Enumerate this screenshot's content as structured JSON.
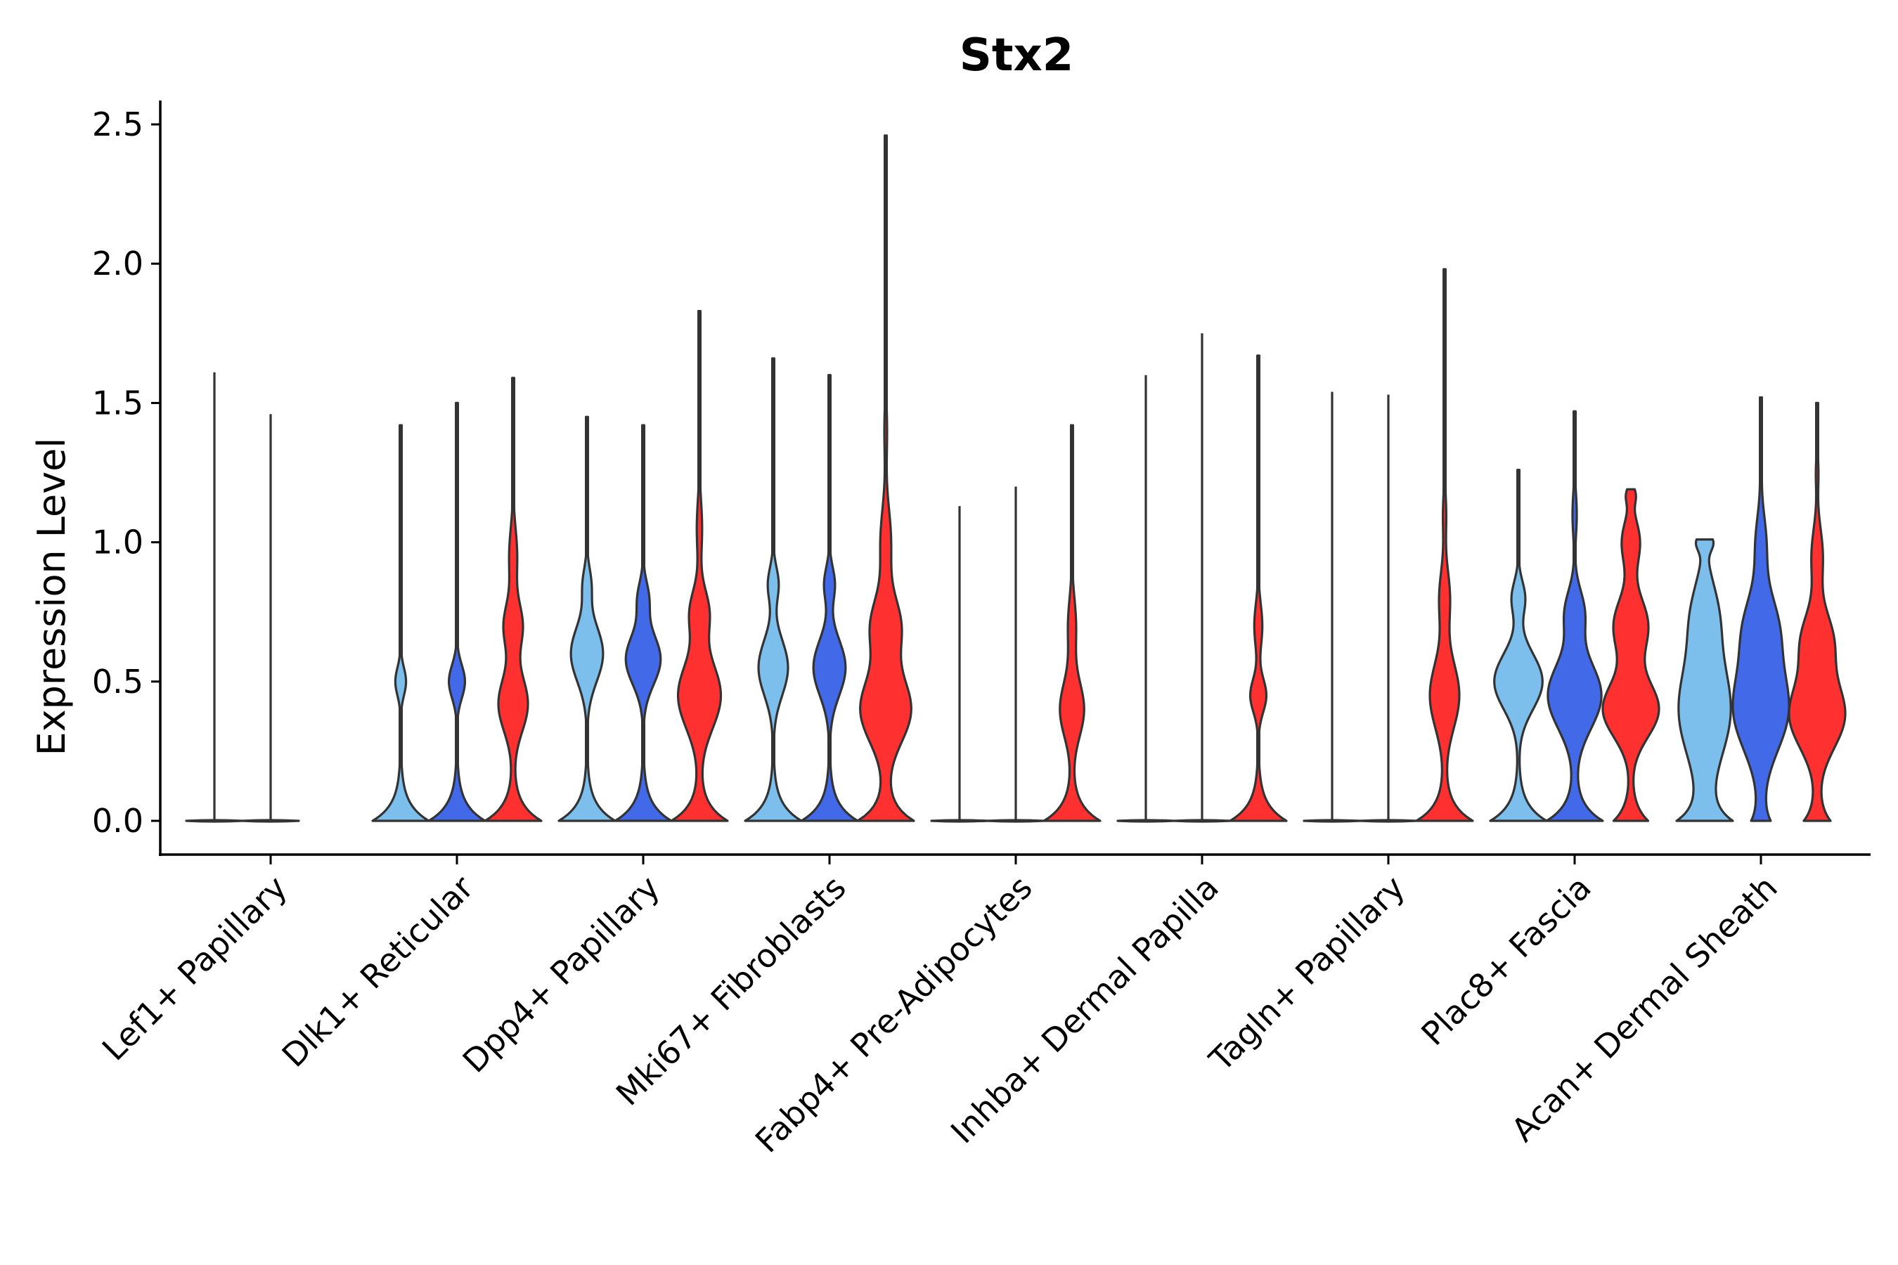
{
  "chart_data": {
    "type": "violin",
    "title": "Stx2",
    "xlabel": "",
    "ylabel": "Expression Level",
    "ylim": [
      -0.12,
      2.6
    ],
    "yticks": [
      0.0,
      0.5,
      1.0,
      1.5,
      2.0,
      2.5
    ],
    "ytick_labels": [
      "0.0",
      "0.5",
      "1.0",
      "1.5",
      "2.0",
      "2.5"
    ],
    "grid": false,
    "legend": "none",
    "series_colors": [
      "#7dbfec",
      "#4169e8",
      "#ff3030"
    ],
    "categories": [
      "Lef1+ Papillary",
      "Dlk1+ Reticular",
      "Dpp4+ Papillary",
      "Mki67+ Fibroblasts",
      "Fabp4+ Pre-Adipocytes",
      "Inhba+ Dermal Papilla",
      "Tagln+ Papillary",
      "Plac8+ Fascia",
      "Acan+ Dermal Sheath"
    ],
    "groups": [
      {
        "category": "Lef1+ Papillary",
        "violins": [
          {
            "series": 0,
            "max": 1.61,
            "width": 0.04,
            "modes": []
          },
          {
            "series": 1,
            "max": 1.46,
            "width": 0.04,
            "modes": []
          }
        ]
      },
      {
        "category": "Dlk1+ Reticular",
        "violins": [
          {
            "series": 0,
            "max": 1.42,
            "width": 1.0,
            "modes": [
              [
                0.5,
                0.05,
                0.2
              ]
            ]
          },
          {
            "series": 1,
            "max": 1.5,
            "width": 1.0,
            "modes": [
              [
                0.5,
                0.06,
                0.3
              ]
            ]
          },
          {
            "series": 2,
            "max": 1.59,
            "width": 1.0,
            "modes": [
              [
                0.42,
                0.1,
                0.55
              ],
              [
                0.7,
                0.08,
                0.35
              ],
              [
                0.95,
                0.1,
                0.15
              ]
            ]
          }
        ]
      },
      {
        "category": "Dpp4+ Papillary",
        "violins": [
          {
            "series": 0,
            "max": 1.45,
            "width": 1.0,
            "modes": [
              [
                0.6,
                0.1,
                0.6
              ],
              [
                0.85,
                0.06,
                0.15
              ]
            ]
          },
          {
            "series": 1,
            "max": 1.42,
            "width": 1.0,
            "modes": [
              [
                0.58,
                0.09,
                0.65
              ],
              [
                0.8,
                0.06,
                0.2
              ]
            ]
          },
          {
            "series": 2,
            "max": 1.83,
            "width": 1.0,
            "modes": [
              [
                0.45,
                0.12,
                0.8
              ],
              [
                0.75,
                0.08,
                0.35
              ],
              [
                1.05,
                0.1,
                0.1
              ]
            ]
          }
        ]
      },
      {
        "category": "Mki67+ Fibroblasts",
        "violins": [
          {
            "series": 0,
            "max": 1.66,
            "width": 1.0,
            "modes": [
              [
                0.55,
                0.1,
                0.55
              ],
              [
                0.85,
                0.06,
                0.2
              ]
            ]
          },
          {
            "series": 1,
            "max": 1.6,
            "width": 1.0,
            "modes": [
              [
                0.55,
                0.1,
                0.6
              ],
              [
                0.85,
                0.06,
                0.2
              ]
            ]
          },
          {
            "series": 2,
            "max": 2.46,
            "width": 1.0,
            "modes": [
              [
                0.4,
                0.12,
                0.95
              ],
              [
                0.7,
                0.1,
                0.55
              ],
              [
                1.0,
                0.12,
                0.2
              ],
              [
                1.4,
                0.1,
                0.05
              ]
            ]
          }
        ]
      },
      {
        "category": "Fabp4+ Pre-Adipocytes",
        "violins": [
          {
            "series": 0,
            "max": 1.13,
            "width": 0.04,
            "modes": []
          },
          {
            "series": 1,
            "max": 1.2,
            "width": 0.04,
            "modes": []
          },
          {
            "series": 2,
            "max": 1.42,
            "width": 1.0,
            "modes": [
              [
                0.4,
                0.1,
                0.45
              ],
              [
                0.7,
                0.1,
                0.15
              ]
            ]
          }
        ]
      },
      {
        "category": "Inhba+ Dermal Papilla",
        "violins": [
          {
            "series": 0,
            "max": 1.6,
            "width": 0.04,
            "modes": []
          },
          {
            "series": 1,
            "max": 1.75,
            "width": 0.04,
            "modes": []
          },
          {
            "series": 2,
            "max": 1.67,
            "width": 1.0,
            "modes": [
              [
                0.45,
                0.06,
                0.3
              ],
              [
                0.7,
                0.08,
                0.15
              ]
            ]
          }
        ]
      },
      {
        "category": "Tagln+ Papillary",
        "violins": [
          {
            "series": 0,
            "max": 1.54,
            "width": 0.04,
            "modes": []
          },
          {
            "series": 1,
            "max": 1.53,
            "width": 0.04,
            "modes": []
          },
          {
            "series": 2,
            "max": 1.98,
            "width": 1.0,
            "modes": [
              [
                0.45,
                0.12,
                0.55
              ],
              [
                0.8,
                0.1,
                0.2
              ],
              [
                1.1,
                0.08,
                0.06
              ]
            ]
          }
        ]
      },
      {
        "category": "Plac8+ Fascia",
        "violins": [
          {
            "series": 0,
            "max": 1.26,
            "width": 1.0,
            "modes": [
              [
                0.5,
                0.1,
                0.9
              ],
              [
                0.8,
                0.06,
                0.25
              ]
            ]
          },
          {
            "series": 1,
            "max": 1.47,
            "width": 1.0,
            "modes": [
              [
                0.45,
                0.12,
                1.0
              ],
              [
                0.75,
                0.08,
                0.35
              ],
              [
                1.1,
                0.08,
                0.08
              ]
            ]
          },
          {
            "series": 2,
            "max": 1.19,
            "width": 1.0,
            "modes": [
              [
                0.4,
                0.1,
                1.7
              ],
              [
                0.7,
                0.1,
                1.05
              ],
              [
                1.0,
                0.08,
                0.55
              ],
              [
                1.17,
                0.03,
                0.25
              ]
            ]
          }
        ]
      },
      {
        "category": "Acan+ Dermal Sheath",
        "violins": [
          {
            "series": 0,
            "max": 1.01,
            "width": 1.0,
            "modes": [
              [
                0.4,
                0.18,
                1.05
              ],
              [
                0.75,
                0.12,
                0.45
              ],
              [
                1.0,
                0.03,
                0.3
              ]
            ]
          },
          {
            "series": 1,
            "max": 1.52,
            "width": 1.0,
            "modes": [
              [
                0.4,
                0.15,
                3.2
              ],
              [
                0.7,
                0.12,
                1.8
              ],
              [
                1.0,
                0.1,
                0.6
              ],
              [
                1.3,
                0.08,
                0.1
              ]
            ]
          },
          {
            "series": 2,
            "max": 1.5,
            "width": 1.0,
            "modes": [
              [
                0.38,
                0.12,
                2.2
              ],
              [
                0.65,
                0.1,
                1.2
              ],
              [
                0.95,
                0.1,
                0.45
              ],
              [
                1.25,
                0.06,
                0.1
              ]
            ]
          }
        ]
      }
    ]
  }
}
